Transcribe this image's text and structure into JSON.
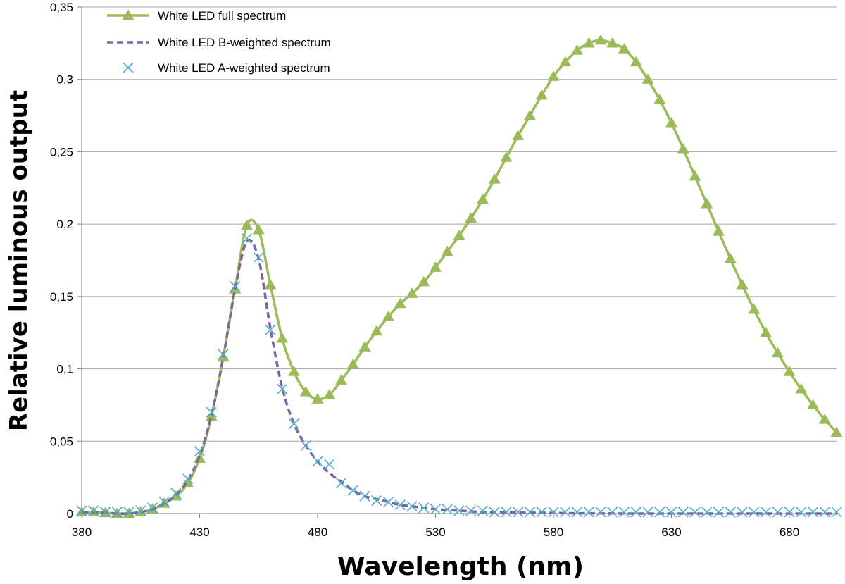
{
  "chart_data": {
    "type": "line",
    "xlabel": "Wavelength (nm)",
    "ylabel": "Relative luminous output",
    "xlim": [
      380,
      700
    ],
    "ylim": [
      0,
      0.35
    ],
    "x_ticks": [
      380,
      430,
      480,
      530,
      580,
      630,
      680
    ],
    "y_ticks": [
      0,
      0.05,
      0.1,
      0.15,
      0.2,
      0.25,
      0.3,
      0.35
    ],
    "x_tick_labels": [
      "380",
      "430",
      "480",
      "530",
      "580",
      "630",
      "680"
    ],
    "y_tick_labels": [
      "0",
      "0,05",
      "0,1",
      "0,15",
      "0,2",
      "0,25",
      "0,3",
      "0,35"
    ],
    "grid": "horizontal",
    "legend_position": "top-left",
    "x": [
      380,
      385,
      390,
      395,
      400,
      405,
      410,
      415,
      420,
      425,
      430,
      435,
      440,
      445,
      450,
      455,
      460,
      465,
      470,
      475,
      480,
      485,
      490,
      495,
      500,
      505,
      510,
      515,
      520,
      525,
      530,
      535,
      540,
      545,
      550,
      555,
      560,
      565,
      570,
      575,
      580,
      585,
      590,
      595,
      600,
      605,
      610,
      615,
      620,
      625,
      630,
      635,
      640,
      645,
      650,
      655,
      660,
      665,
      670,
      675,
      680,
      685,
      690,
      695,
      700
    ],
    "series": [
      {
        "name": "White LED full spectrum",
        "color": "#9bbb59",
        "style": "solid-triangle",
        "values": [
          0.001,
          0.001,
          0.0005,
          0,
          0,
          0.001,
          0.003,
          0.007,
          0.012,
          0.021,
          0.038,
          0.067,
          0.108,
          0.155,
          0.199,
          0.196,
          0.158,
          0.121,
          0.098,
          0.084,
          0.079,
          0.082,
          0.092,
          0.103,
          0.115,
          0.126,
          0.136,
          0.145,
          0.152,
          0.16,
          0.17,
          0.181,
          0.192,
          0.204,
          0.217,
          0.231,
          0.246,
          0.261,
          0.275,
          0.289,
          0.302,
          0.312,
          0.32,
          0.325,
          0.327,
          0.325,
          0.321,
          0.312,
          0.3,
          0.286,
          0.27,
          0.252,
          0.233,
          0.214,
          0.195,
          0.176,
          0.158,
          0.141,
          0.125,
          0.111,
          0.098,
          0.086,
          0.075,
          0.065,
          0.056
        ]
      },
      {
        "name": "White LED B-weighted spectrum",
        "color": "#8064a2",
        "style": "dashed",
        "values": [
          0.001,
          0.001,
          0.0005,
          0,
          0,
          0.001,
          0.003,
          0.007,
          0.013,
          0.023,
          0.04,
          0.068,
          0.108,
          0.155,
          0.188,
          0.176,
          0.128,
          0.087,
          0.062,
          0.047,
          0.036,
          0.028,
          0.022,
          0.016,
          0.012,
          0.01,
          0.008,
          0.006,
          0.005,
          0.004,
          0.003,
          0.0025,
          0.002,
          0.0015,
          0.001,
          0.001,
          0.001,
          0.0008,
          0.0006,
          0.0005,
          0.0004,
          0.0003,
          0.0002,
          0.0002,
          0.0001,
          0.0001,
          0,
          0,
          0,
          0,
          0,
          0,
          0,
          0,
          0,
          0,
          0,
          0,
          0,
          0,
          0,
          0,
          0,
          0,
          0
        ]
      },
      {
        "name": "White LED A-weighted spectrum",
        "color": "#4bacc6",
        "style": "x-marker",
        "values": [
          0.002,
          0.002,
          0.001,
          0.001,
          0.001,
          0.002,
          0.004,
          0.008,
          0.014,
          0.024,
          0.043,
          0.07,
          0.11,
          0.157,
          0.19,
          0.177,
          0.127,
          0.086,
          0.062,
          0.047,
          0.036,
          0.034,
          0.021,
          0.016,
          0.012,
          0.009,
          0.008,
          0.006,
          0.005,
          0.004,
          0.003,
          0.003,
          0.002,
          0.002,
          0.002,
          0.001,
          0.001,
          0.001,
          0.001,
          0.001,
          0.001,
          0.001,
          0.001,
          0.001,
          0.001,
          0.001,
          0.001,
          0.001,
          0.001,
          0.001,
          0.001,
          0.001,
          0.001,
          0.001,
          0.001,
          0.001,
          0.001,
          0.001,
          0.001,
          0.001,
          0.001,
          0.001,
          0.001,
          0.001,
          0.001
        ]
      }
    ]
  }
}
